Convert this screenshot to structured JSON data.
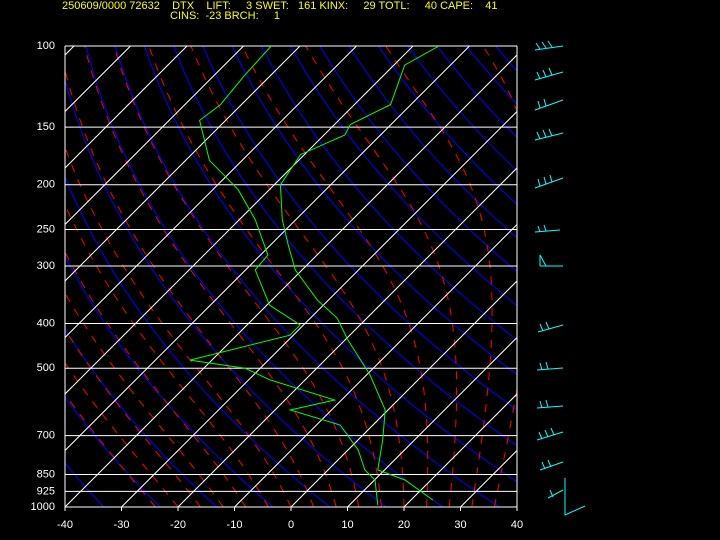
{
  "chart_data": {
    "type": "skewt",
    "title": "250609/0000 72632    DTX    LIFT:     3 SWET:   161 KINX:     29 TOTL:     40 CAPE:    41",
    "subtitle": "CINS:  -23 BRCH:     1",
    "xlim": [
      -40,
      40
    ],
    "xticks": [
      -40,
      -30,
      -20,
      -10,
      0,
      10,
      20,
      30,
      40
    ],
    "ylim": [
      1000,
      100
    ],
    "yticks": [
      100,
      150,
      200,
      250,
      300,
      400,
      500,
      700,
      850,
      925,
      1000
    ],
    "log_scale": true,
    "grid": true,
    "series": [
      {
        "color": "#00ff00",
        "pressure": [
          966,
          874,
          831,
          716,
          616,
          517,
          434,
          389,
          356,
          306,
          270,
          238,
          200,
          172,
          156,
          148,
          134,
          110,
          100
        ],
        "values": [
          23.9,
          15.4,
          8.8,
          4.4,
          -0.5,
          -9.4,
          -19.5,
          -25.3,
          -31.9,
          -41.2,
          -46.9,
          -52.4,
          -58.9,
          -60.7,
          -56.3,
          -57.2,
          -53.6,
          -58.1,
          -55.4
        ]
      },
      {
        "color": "#00ff00",
        "pressure": [
          990,
          874,
          831,
          752,
          664,
          616,
          586,
          530,
          500,
          480,
          424,
          403,
          365,
          306,
          284,
          238,
          205,
          177,
          145,
          134,
          116,
          100
        ],
        "values": [
          15.0,
          10.1,
          6.5,
          1.8,
          -5.8,
          -17.3,
          -11.2,
          -26.2,
          -32.7,
          -43.9,
          -30.6,
          -30.6,
          -39.5,
          -48.3,
          -48.7,
          -57.2,
          -65.5,
          -75.8,
          -84.6,
          -83.7,
          -84.6,
          -85.1
        ]
      }
    ]
  }
}
